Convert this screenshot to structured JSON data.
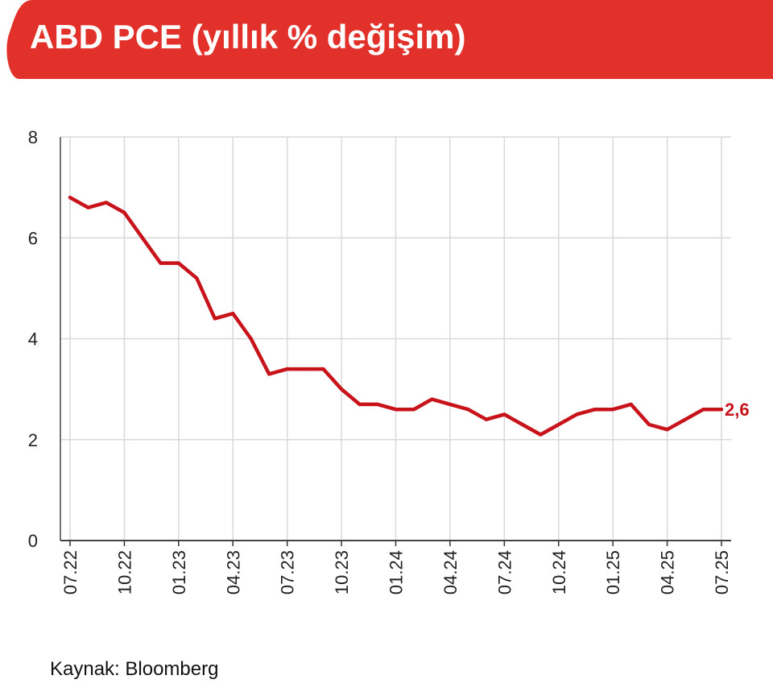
{
  "header": {
    "title": "ABD PCE (yıllık % değişim)",
    "color": "#e2302a"
  },
  "source_text": "Kaynak: Bloomberg",
  "chart_data": {
    "type": "line",
    "title": "ABD PCE (yıllık % değişim)",
    "xlabel": "",
    "ylabel": "",
    "ylim": [
      0,
      8
    ],
    "yticks": [
      "0",
      "2",
      "4",
      "6",
      "8"
    ],
    "xtick_labels": [
      "07.22",
      "10.22",
      "01.23",
      "04.23",
      "07.23",
      "10.23",
      "01.24",
      "04.24",
      "07.24",
      "10.24",
      "01.25",
      "04.25",
      "07.25"
    ],
    "grid": true,
    "legend": "none",
    "line_color": "#c8131b",
    "series": [
      {
        "x": [
          "07.22",
          "08.22",
          "09.22",
          "10.22",
          "11.22",
          "12.22",
          "01.23",
          "02.23",
          "03.23",
          "04.23",
          "05.23",
          "06.23",
          "07.23",
          "08.23",
          "09.23",
          "10.23",
          "11.23",
          "12.23",
          "01.24",
          "02.24",
          "03.24",
          "04.24",
          "05.24",
          "06.24",
          "07.24",
          "08.24",
          "09.24",
          "10.24",
          "11.24",
          "12.24",
          "01.25",
          "02.25",
          "03.25",
          "04.25",
          "05.25",
          "06.25",
          "07.25"
        ],
        "values": [
          6.8,
          6.6,
          6.7,
          6.5,
          6.0,
          5.5,
          5.5,
          5.2,
          4.4,
          4.5,
          4.0,
          3.3,
          3.4,
          3.4,
          3.4,
          3.0,
          2.7,
          2.7,
          2.6,
          2.6,
          2.8,
          2.7,
          2.6,
          2.4,
          2.5,
          2.3,
          2.1,
          2.3,
          2.5,
          2.6,
          2.6,
          2.7,
          2.3,
          2.2,
          2.4,
          2.6,
          2.6
        ]
      }
    ],
    "annotations": [
      {
        "text": "2,6",
        "index": 36
      }
    ]
  }
}
